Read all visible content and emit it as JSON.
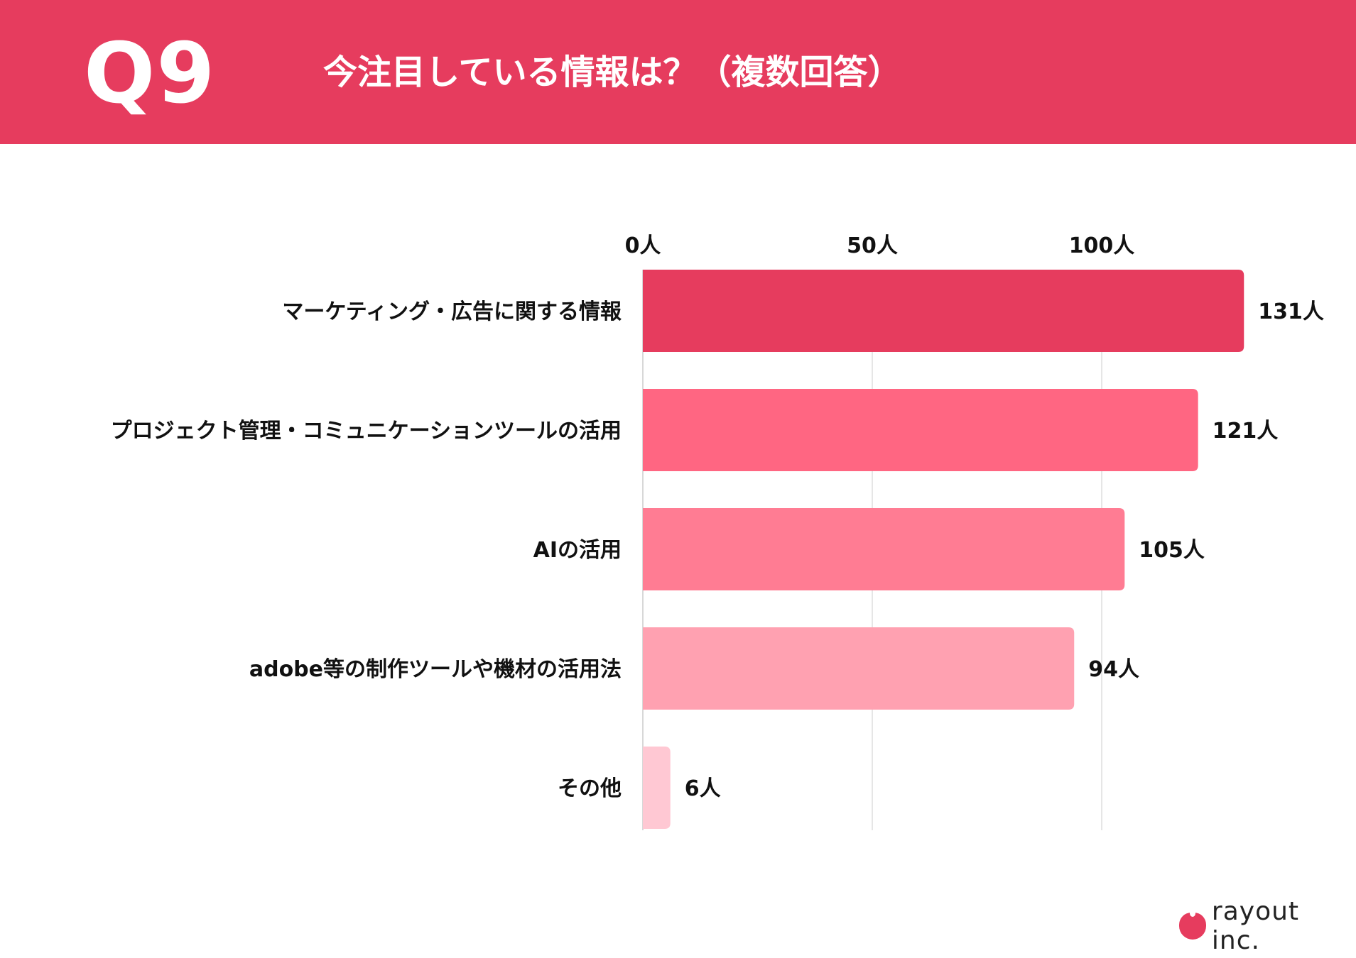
{
  "header": {
    "q_label": "Q9",
    "title": "今注目している情報は？（複数回答）"
  },
  "brand": {
    "name": "rayout inc.",
    "icon": "tomato-logo-icon"
  },
  "colors": {
    "header_bg": "#e63c5e",
    "bars": [
      "#e63c5e",
      "#ff6682",
      "#ff7c93",
      "#ffa1b1",
      "#ffc8d3"
    ],
    "grid": "#dddddd"
  },
  "chart_data": {
    "type": "bar",
    "orientation": "horizontal",
    "categories": [
      "マーケティング・広告に関する情報",
      "プロジェクト管理・コミュニケーションツールの活用",
      "AIの活用",
      "adobe等の制作ツールや機材の活用法",
      "その他"
    ],
    "values": [
      131,
      121,
      105,
      94,
      6
    ],
    "value_labels": [
      "131人",
      "121人",
      "105人",
      "94人",
      "6人"
    ],
    "xticks": [
      0,
      50,
      100
    ],
    "xtick_labels": [
      "0人",
      "50人",
      "100人"
    ],
    "xlim": [
      0,
      131
    ],
    "grid": true,
    "legend": "none"
  }
}
